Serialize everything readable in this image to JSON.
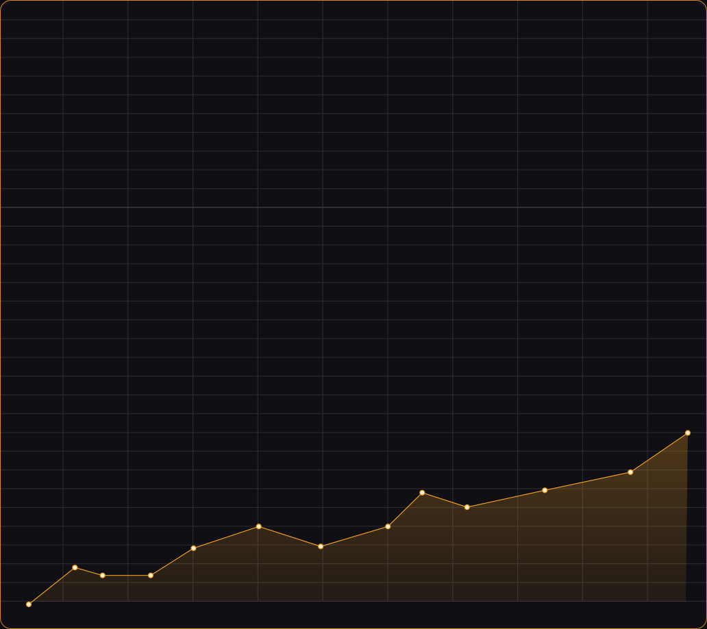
{
  "chart_data": {
    "type": "area",
    "title": "",
    "xlabel": "",
    "ylabel": "",
    "grid": true,
    "legend": "none",
    "xlim": [
      0,
      1
    ],
    "ylim": [
      0,
      1
    ],
    "x": [
      0.0,
      0.07,
      0.112,
      0.185,
      0.25,
      0.349,
      0.443,
      0.545,
      0.597,
      0.665,
      0.783,
      0.913,
      1.0
    ],
    "series": [
      {
        "values": [
          0.0,
          0.061,
          0.048,
          0.048,
          0.093,
          0.129,
          0.096,
          0.129,
          0.185,
          0.161,
          0.189,
          0.219,
          0.284
        ]
      }
    ]
  },
  "colors": {
    "background": "#100f15",
    "frame_border": "#d98a1c",
    "grid": "#2a2930",
    "grid_major": "#3b3a41",
    "line": "#f0a020",
    "area_top": "#f0a020",
    "marker_fill": "#fff6e0"
  }
}
